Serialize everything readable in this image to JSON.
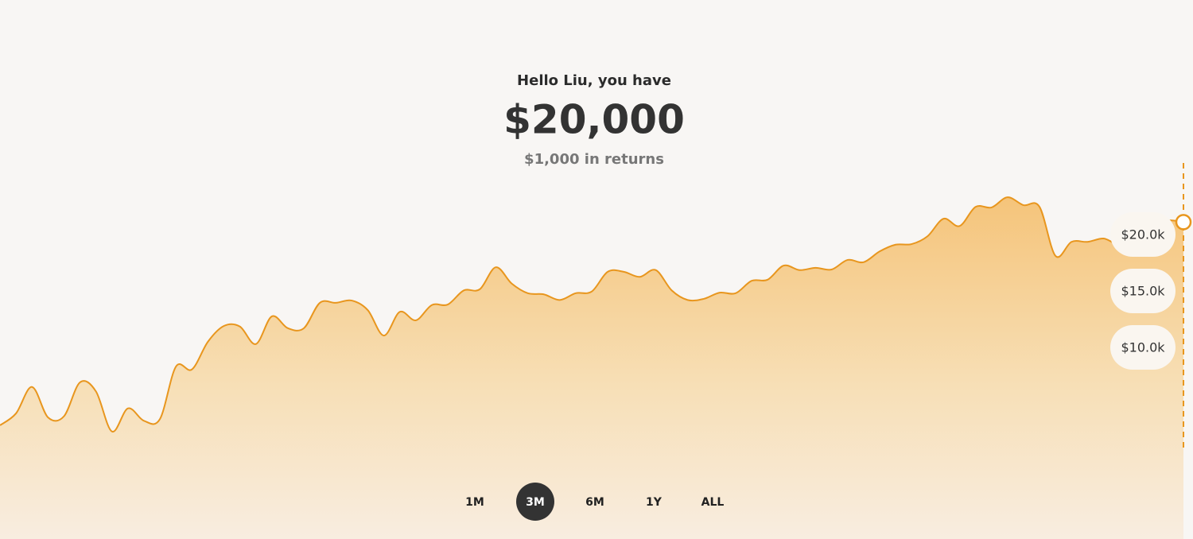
{
  "header": {
    "greeting": "Hello Liu, you have",
    "balance": "$20,000",
    "returns": "$1,000 in returns"
  },
  "chart_data": {
    "type": "area",
    "color": "#e8961e",
    "values": [
      3100,
      4150,
      6500,
      3800,
      3900,
      6900,
      6100,
      2550,
      4600,
      3500,
      3650,
      8300,
      8050,
      10500,
      11900,
      11850,
      10300,
      12750,
      11700,
      11700,
      13950,
      13950,
      14150,
      13300,
      11050,
      13150,
      12400,
      13750,
      13800,
      15050,
      15150,
      17100,
      15650,
      14800,
      14700,
      14200,
      14800,
      14950,
      16700,
      16700,
      16250,
      16850,
      15050,
      14200,
      14300,
      14850,
      14800,
      15900,
      16000,
      17250,
      16850,
      17050,
      16900,
      17750,
      17550,
      18500,
      19100,
      19150,
      19850,
      21400,
      20750,
      22450,
      22400,
      23300,
      22600,
      22450,
      18100,
      19350,
      19350,
      19650,
      19200,
      20550,
      20750,
      21250,
      21100
    ],
    "ylim": [
      0,
      25000
    ],
    "yticks": [
      {
        "value": 20000,
        "label": "$20.0k"
      },
      {
        "value": 15000,
        "label": "$15.0k"
      },
      {
        "value": 10000,
        "label": "$10.0k"
      }
    ]
  },
  "range_buttons": {
    "options": [
      "1M",
      "3M",
      "6M",
      "1Y",
      "ALL"
    ],
    "selected": 1
  }
}
